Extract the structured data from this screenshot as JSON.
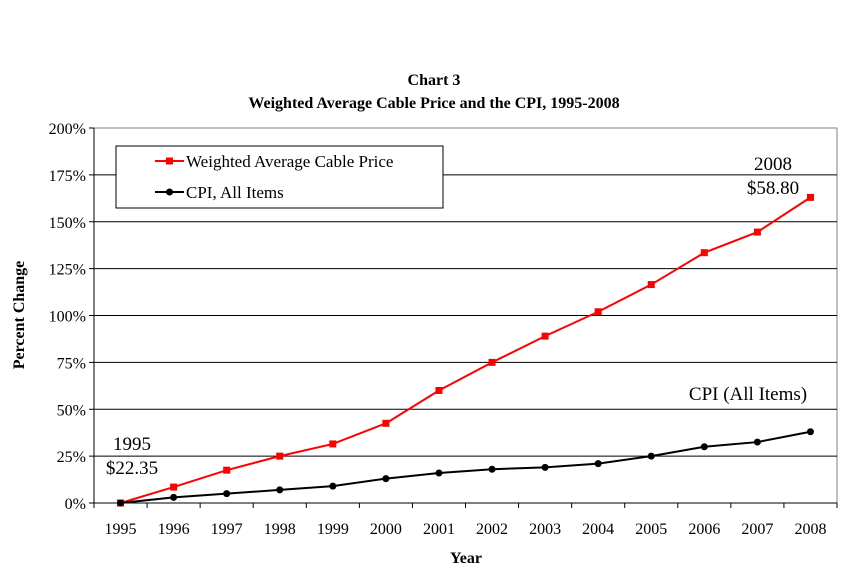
{
  "chart_data": {
    "type": "line",
    "title": "Chart 3",
    "subtitle": "Weighted Average Cable Price and the CPI, 1995-2008",
    "xlabel": "Year",
    "ylabel": "Percent Change",
    "ylim": [
      0,
      200
    ],
    "y_ticks": [
      0,
      25,
      50,
      75,
      100,
      125,
      150,
      175,
      200
    ],
    "y_tick_labels": [
      "0%",
      "25%",
      "50%",
      "75%",
      "100%",
      "125%",
      "150%",
      "175%",
      "200%"
    ],
    "categories": [
      "1995",
      "1996",
      "1997",
      "1998",
      "1999",
      "2000",
      "2001",
      "2002",
      "2003",
      "2004",
      "2005",
      "2006",
      "2007",
      "2008"
    ],
    "grid": true,
    "legend_position": "top-left",
    "series": [
      {
        "name": "Weighted Average Cable Price",
        "color": "#ff0000",
        "marker": "square",
        "values": [
          0,
          8.5,
          17.5,
          25,
          31.5,
          42.5,
          60,
          75,
          89,
          102,
          116.5,
          133.5,
          144.5,
          163
        ]
      },
      {
        "name": "CPI, All Items",
        "color": "#000000",
        "marker": "circle",
        "values": [
          0,
          3,
          5,
          7,
          9,
          13,
          16,
          18,
          19,
          21,
          25,
          30,
          32.5,
          38
        ]
      }
    ],
    "annotations": {
      "start_year": "1995",
      "start_price": "$22.35",
      "end_year": "2008",
      "end_price": "$58.80",
      "cpi_label": "CPI (All Items)"
    }
  }
}
